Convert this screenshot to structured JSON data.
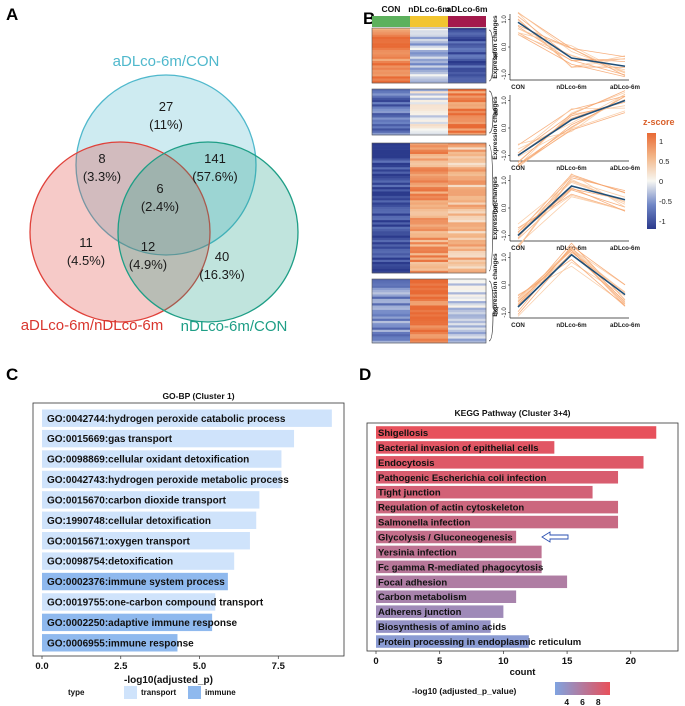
{
  "figure": {
    "panels": [
      "A",
      "B",
      "C",
      "D"
    ]
  },
  "chart_data": [
    {
      "panel": "A",
      "type": "venn",
      "sets": [
        {
          "name": "aDLco-6m/CON",
          "color": "#4fb8cc"
        },
        {
          "name": "aDLco-6m/nDLco-6m",
          "color": "#e0413a"
        },
        {
          "name": "nDLco-6m/CON",
          "color": "#1e9e86"
        }
      ],
      "regions": [
        {
          "sets": [
            "aDLco-6m/CON"
          ],
          "count": "27",
          "pct": "(11%)"
        },
        {
          "sets": [
            "aDLco-6m/CON",
            "aDLco-6m/nDLco-6m"
          ],
          "count": "8",
          "pct": "(3.3%)"
        },
        {
          "sets": [
            "aDLco-6m/CON",
            "nDLco-6m/CON"
          ],
          "count": "141",
          "pct": "(57.6%)"
        },
        {
          "sets": [
            "aDLco-6m/CON",
            "aDLco-6m/nDLco-6m",
            "nDLco-6m/CON"
          ],
          "count": "6",
          "pct": "(2.4%)"
        },
        {
          "sets": [
            "aDLco-6m/nDLco-6m"
          ],
          "count": "11",
          "pct": "(4.5%)"
        },
        {
          "sets": [
            "aDLco-6m/nDLco-6m",
            "nDLco-6m/CON"
          ],
          "count": "12",
          "pct": "(4.9%)"
        },
        {
          "sets": [
            "nDLco-6m/CON"
          ],
          "count": "40",
          "pct": "(16.3%)"
        }
      ]
    },
    {
      "panel": "B",
      "type": "heatmap",
      "columns": [
        "CON",
        "nDLco-6m",
        "aDLco-6m"
      ],
      "column_colors": [
        "#5db15d",
        "#f2c530",
        "#a31a4c"
      ],
      "colorbar": {
        "title": "z-score",
        "ticks": [
          "1",
          "0.5",
          "0",
          "-0.5",
          "-1"
        ],
        "range": [
          -1.2,
          1.2
        ]
      },
      "line_ylabel": "Expression changes",
      "line_yticks": [
        "1.0",
        "0.0",
        "-1.0"
      ],
      "clusters": [
        {
          "size": "47",
          "means": [
            0.9,
            -0.4,
            -0.7
          ],
          "block_z": [
            1.0,
            -0.3,
            -1.0
          ]
        },
        {
          "size": "38",
          "means": [
            -1.0,
            0.3,
            1.0
          ],
          "block_z": [
            -0.8,
            -0.1,
            1.0
          ]
        },
        {
          "size": "108",
          "means": [
            -1.0,
            0.8,
            0.3
          ],
          "block_z": [
            -1.1,
            0.8,
            0.55
          ]
        },
        {
          "size": "52",
          "means": [
            -0.8,
            1.1,
            -0.35
          ],
          "block_z": [
            -0.6,
            1.1,
            -0.2
          ]
        }
      ]
    },
    {
      "panel": "C",
      "type": "bar",
      "title": "GO-BP (Cluster 1)",
      "xlabel": "-log10(adjusted_p)",
      "xlim": [
        0,
        9.3
      ],
      "xticks": [
        "0.0",
        "2.5",
        "5.0",
        "7.5"
      ],
      "xtick_values": [
        0,
        2.5,
        5,
        7.5
      ],
      "legend": {
        "title": "type",
        "items": [
          {
            "name": "transport",
            "color": "#cfe3fb"
          },
          {
            "name": "immune",
            "color": "#8fb9ee"
          }
        ]
      },
      "categories": [
        "GO:0042744:hydrogen peroxide catabolic process",
        "GO:0015669:gas transport",
        "GO:0098869:cellular oxidant detoxification",
        "GO:0042743:hydrogen peroxide metabolic process",
        "GO:0015670:carbon dioxide transport",
        "GO:1990748:cellular detoxification",
        "GO:0015671:oxygen transport",
        "GO:0098754:detoxification",
        "GO:0002376:immune system process",
        "GO:0019755:one-carbon compound transport",
        "GO:0002250:adaptive immune response",
        "GO:0006955:immune response"
      ],
      "values": [
        9.2,
        8.0,
        7.6,
        7.6,
        6.9,
        6.8,
        6.6,
        6.1,
        5.9,
        5.5,
        5.4,
        4.3
      ],
      "types": [
        "transport",
        "transport",
        "transport",
        "transport",
        "transport",
        "transport",
        "transport",
        "transport",
        "immune",
        "transport",
        "immune",
        "immune"
      ]
    },
    {
      "panel": "D",
      "type": "bar",
      "title": "KEGG Pathway (Cluster 3+4)",
      "xlabel": "count",
      "xlim": [
        0,
        23
      ],
      "xticks": [
        "0",
        "5",
        "10",
        "15",
        "20"
      ],
      "xtick_values": [
        0,
        5,
        10,
        15,
        20
      ],
      "legend": {
        "title": "-log10 (adjusted_p_value)",
        "ticks": [
          "4",
          "6",
          "8"
        ],
        "range": [
          2.5,
          9.5
        ],
        "colors": [
          "#7fa3e0",
          "#e8505a"
        ]
      },
      "categories": [
        "Shigellosis",
        "Bacterial invasion of epithelial cells",
        "Endocytosis",
        "Pathogenic Escherichia coli infection",
        "Tight junction",
        "Regulation of actin cytoskeleton",
        "Salmonella infection",
        "Glycolysis / Gluconeogenesis",
        "Yersinia infection",
        "Fc gamma R-mediated phagocytosis",
        "Focal adhesion",
        "Carbon metabolism",
        "Adherens junction",
        "Biosynthesis of amino acids",
        "Protein processing in endoplasmic reticulum"
      ],
      "values": [
        22,
        14,
        21,
        19,
        17,
        19,
        19,
        11,
        13,
        13,
        15,
        11,
        10,
        9,
        12
      ],
      "color_values": [
        9.4,
        9.0,
        8.8,
        8.4,
        8.0,
        7.6,
        7.3,
        7.0,
        6.6,
        6.2,
        5.7,
        5.2,
        4.6,
        3.9,
        3.2
      ],
      "highlight": "Glycolysis / Gluconeogenesis"
    }
  ]
}
